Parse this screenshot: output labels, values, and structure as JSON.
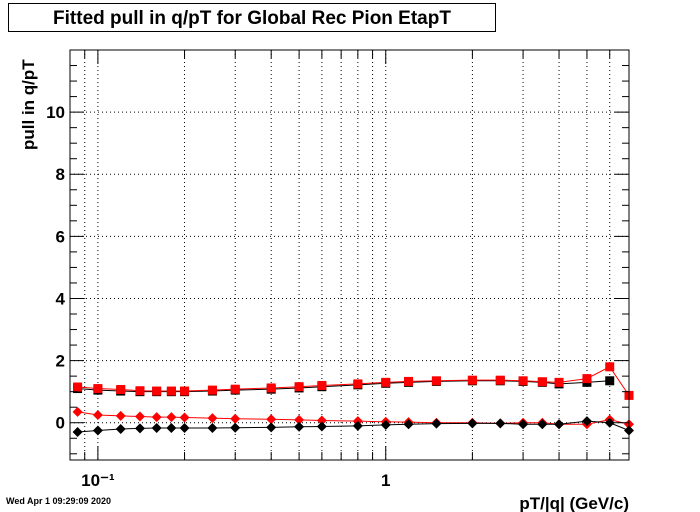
{
  "footer": {
    "date": "Wed Apr  1 09:29:09 2020"
  },
  "chart_data": {
    "type": "scatter",
    "title": "Fitted pull in q/pT for Global Rec Pion EtapT",
    "xlabel": "pT/|q| (GeV/c)",
    "ylabel": "pull in q/pT",
    "xscale": "log",
    "xlim": [
      0.08,
      7.0
    ],
    "ylim": [
      -1.2,
      12.0
    ],
    "grid": true,
    "xtick_labels": [
      "10⁻¹",
      "1"
    ],
    "ytick_labels": [
      "0",
      "2",
      "4",
      "6",
      "8",
      "10"
    ],
    "colors": {
      "red": "#ff0000",
      "black": "#000000"
    },
    "series": [
      {
        "marker": "square",
        "color": "#000000",
        "x": [
          0.085,
          0.1,
          0.12,
          0.14,
          0.16,
          0.18,
          0.2,
          0.25,
          0.3,
          0.4,
          0.5,
          0.6,
          0.8,
          1.0,
          1.2,
          1.5,
          2.0,
          2.5,
          3.0,
          3.5,
          4.0,
          5.0,
          6.0
        ],
        "y": [
          1.1,
          1.05,
          1.02,
          1.0,
          1.0,
          1.0,
          1.0,
          1.02,
          1.05,
          1.08,
          1.12,
          1.16,
          1.22,
          1.27,
          1.3,
          1.33,
          1.35,
          1.35,
          1.33,
          1.3,
          1.25,
          1.3,
          1.35
        ]
      },
      {
        "marker": "square",
        "color": "#ff0000",
        "x": [
          0.085,
          0.1,
          0.12,
          0.14,
          0.16,
          0.18,
          0.2,
          0.25,
          0.3,
          0.4,
          0.5,
          0.6,
          0.8,
          1.0,
          1.2,
          1.5,
          2.0,
          2.5,
          3.0,
          3.5,
          4.0,
          5.0,
          6.0,
          7.0
        ],
        "y": [
          1.15,
          1.1,
          1.07,
          1.03,
          1.02,
          1.02,
          1.02,
          1.05,
          1.08,
          1.12,
          1.16,
          1.2,
          1.25,
          1.3,
          1.33,
          1.35,
          1.37,
          1.37,
          1.35,
          1.32,
          1.3,
          1.42,
          1.8,
          0.88
        ]
      },
      {
        "marker": "diamond",
        "color": "#ff0000",
        "x": [
          0.085,
          0.1,
          0.12,
          0.14,
          0.16,
          0.18,
          0.2,
          0.25,
          0.3,
          0.4,
          0.5,
          0.6,
          0.8,
          1.0,
          1.2,
          1.5,
          2.0,
          2.5,
          3.0,
          3.5,
          4.0,
          5.0,
          6.0,
          7.0
        ],
        "y": [
          0.35,
          0.25,
          0.22,
          0.2,
          0.18,
          0.18,
          0.17,
          0.15,
          0.13,
          0.11,
          0.09,
          0.07,
          0.05,
          0.03,
          0.02,
          0.0,
          0.0,
          -0.02,
          0.0,
          0.0,
          -0.05,
          -0.05,
          0.1,
          -0.05
        ]
      },
      {
        "marker": "diamond",
        "color": "#000000",
        "x": [
          0.085,
          0.1,
          0.12,
          0.14,
          0.16,
          0.18,
          0.2,
          0.25,
          0.3,
          0.4,
          0.5,
          0.6,
          0.8,
          1.0,
          1.2,
          1.5,
          2.0,
          2.5,
          3.0,
          3.5,
          4.0,
          5.0,
          6.0,
          7.0
        ],
        "y": [
          -0.3,
          -0.25,
          -0.2,
          -0.18,
          -0.17,
          -0.17,
          -0.17,
          -0.17,
          -0.16,
          -0.15,
          -0.13,
          -0.12,
          -0.1,
          -0.07,
          -0.05,
          -0.03,
          -0.02,
          -0.02,
          -0.05,
          -0.05,
          -0.05,
          0.05,
          0.0,
          -0.25
        ]
      }
    ]
  }
}
